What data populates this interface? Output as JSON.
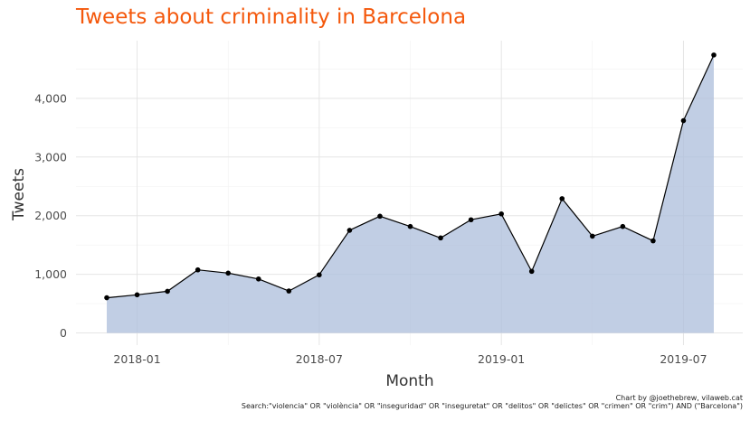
{
  "chart_data": {
    "type": "area",
    "title": "Tweets about criminality in Barcelona",
    "xlabel": "Month",
    "ylabel": "Tweets",
    "x": [
      "2017-12",
      "2018-01",
      "2018-02",
      "2018-03",
      "2018-04",
      "2018-05",
      "2018-06",
      "2018-07",
      "2018-08",
      "2018-09",
      "2018-10",
      "2018-11",
      "2018-12",
      "2019-01",
      "2019-02",
      "2019-03",
      "2019-04",
      "2019-05",
      "2019-06",
      "2019-07",
      "2019-08"
    ],
    "values": [
      600,
      650,
      710,
      1075,
      1020,
      920,
      715,
      990,
      1750,
      1990,
      1815,
      1620,
      1930,
      2030,
      1050,
      2290,
      1650,
      1815,
      1570,
      3620,
      4740
    ],
    "x_ticks": [
      "2018-01",
      "2018-07",
      "2019-01",
      "2019-07"
    ],
    "y_ticks": [
      0,
      1000,
      2000,
      3000,
      4000
    ],
    "y_tick_labels": [
      "0",
      "1,000",
      "2,000",
      "3,000",
      "4,000"
    ],
    "ylim": [
      0,
      4950
    ],
    "grid": true,
    "colors": {
      "title": "#F4580C",
      "fill": "#B0C0DC",
      "line": "#000000",
      "grid": "#E5E5E5"
    }
  },
  "caption": {
    "line1": "Chart by @joethebrew, vilaweb.cat",
    "line2": "Search:\"violencia\" OR \"violència\" OR \"inseguridad\" OR \"inseguretat\" OR \"delitos\" OR \"delictes\" OR \"crimen\" OR \"crim\") AND (\"Barcelona\")"
  }
}
